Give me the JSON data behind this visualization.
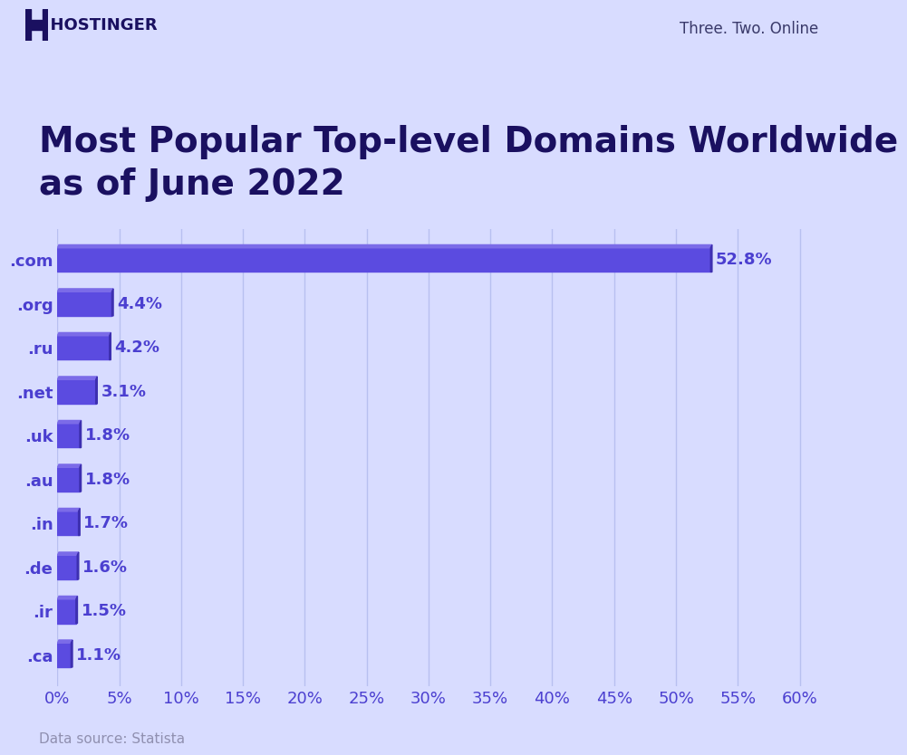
{
  "title": "Most Popular Top-level Domains Worldwide\nas of June 2022",
  "categories": [
    ".com",
    ".org",
    ".ru",
    ".net",
    ".uk",
    ".au",
    ".in",
    ".de",
    ".ir",
    ".ca"
  ],
  "values": [
    52.8,
    4.4,
    4.2,
    3.1,
    1.8,
    1.8,
    1.7,
    1.6,
    1.5,
    1.1
  ],
  "labels": [
    "52.8%",
    "4.4%",
    "4.2%",
    "3.1%",
    "1.8%",
    "1.8%",
    "1.7%",
    "1.6%",
    "1.5%",
    "1.1%"
  ],
  "bar_color_main": "#5B4BE0",
  "bar_color_top": "#7B6BE8",
  "bar_color_side": "#3D2FB0",
  "background_color": "#D8DCFF",
  "grid_color": "#B8C0F0",
  "title_color": "#1a1060",
  "label_color": "#4B3FD0",
  "tick_label_color": "#4B3FD0",
  "data_source_text": "Data source: Statista",
  "data_source_color": "#9090B0",
  "brand_text": "Three. Two. Online",
  "brand_color": "#3a3a6a",
  "hostinger_color": "#1a1060",
  "xlim": [
    0,
    63
  ],
  "xtick_values": [
    0,
    5,
    10,
    15,
    20,
    25,
    30,
    35,
    40,
    45,
    50,
    55,
    60
  ],
  "title_fontsize": 28,
  "tick_fontsize": 13,
  "label_fontsize": 13,
  "bar_height": 0.55
}
